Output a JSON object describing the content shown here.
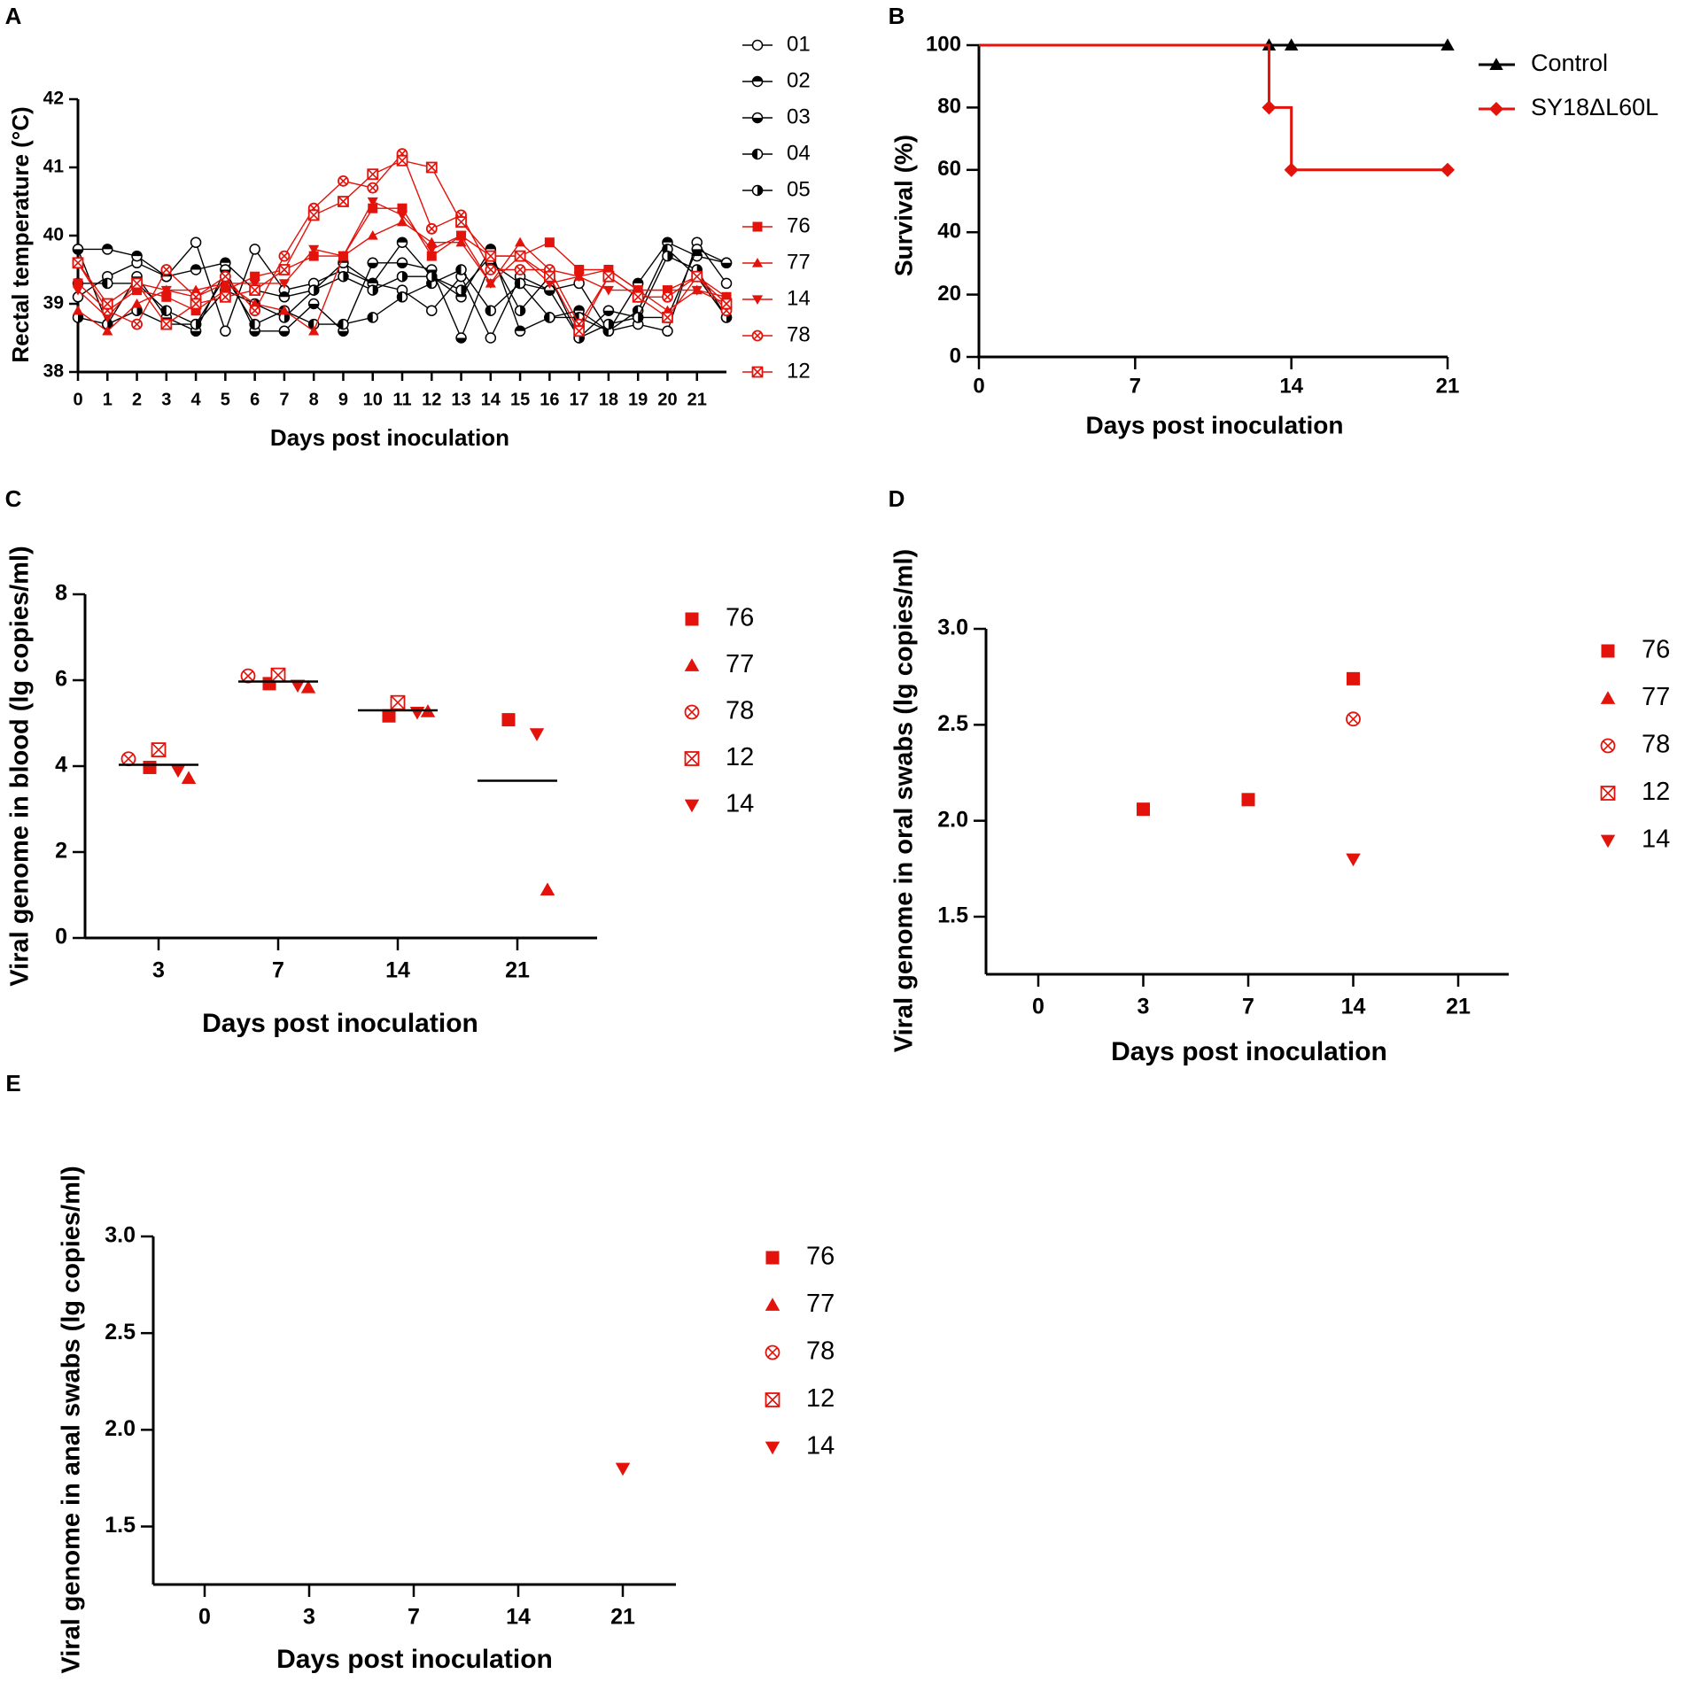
{
  "colors": {
    "red": "#e3120b",
    "black": "#000000",
    "white": "#ffffff"
  },
  "chart_data": [
    {
      "id": "A",
      "panel_label": "A",
      "type": "line",
      "title": "",
      "xlabel": "Days post inoculation",
      "ylabel": "Rectal temperature (°C)",
      "x": [
        0,
        1,
        2,
        3,
        4,
        5,
        6,
        7,
        8,
        9,
        10,
        11,
        12,
        13,
        14,
        15,
        16,
        17,
        18,
        19,
        20,
        21,
        22
      ],
      "xticks": [
        0,
        1,
        2,
        3,
        4,
        5,
        6,
        7,
        8,
        9,
        10,
        11,
        12,
        13,
        14,
        15,
        16,
        17,
        18,
        19,
        20,
        21
      ],
      "xlim": [
        0,
        22
      ],
      "ylim": [
        38,
        42
      ],
      "yticks": [
        38,
        39,
        40,
        41,
        42
      ],
      "series": [
        {
          "name": "01",
          "color": "#000000",
          "marker": "circle-open",
          "values": [
            39.1,
            39.4,
            39.6,
            39.4,
            39.9,
            38.6,
            39.8,
            39.2,
            39.3,
            39.5,
            39.3,
            39.2,
            38.9,
            39.4,
            38.5,
            39.4,
            39.2,
            39.3,
            38.6,
            38.7,
            38.6,
            39.9,
            39.3
          ]
        },
        {
          "name": "02",
          "color": "#000000",
          "marker": "circle-half-top",
          "values": [
            39.8,
            39.8,
            39.7,
            39.4,
            39.5,
            39.6,
            39.2,
            39.1,
            39.2,
            39.6,
            39.3,
            39.9,
            39.4,
            39.1,
            39.8,
            38.6,
            38.8,
            38.9,
            38.6,
            39.3,
            39.9,
            39.7,
            39.6
          ]
        },
        {
          "name": "03",
          "color": "#000000",
          "marker": "circle-half-bottom",
          "values": [
            39.8,
            38.7,
            39.4,
            38.8,
            38.6,
            39.5,
            38.6,
            38.6,
            39.0,
            38.6,
            39.6,
            39.6,
            39.5,
            38.5,
            39.6,
            39.3,
            39.2,
            38.5,
            38.9,
            38.8,
            38.8,
            39.8,
            39.6
          ]
        },
        {
          "name": "04",
          "color": "#000000",
          "marker": "circle-half-left",
          "values": [
            39.3,
            39.3,
            39.3,
            38.9,
            38.7,
            39.4,
            38.7,
            38.9,
            38.7,
            38.7,
            38.8,
            39.1,
            39.3,
            39.5,
            38.9,
            39.3,
            38.8,
            38.8,
            38.6,
            38.9,
            39.8,
            39.4,
            38.8
          ]
        },
        {
          "name": "05",
          "color": "#000000",
          "marker": "circle-half-right",
          "values": [
            38.8,
            38.7,
            38.9,
            38.7,
            38.7,
            39.2,
            39.0,
            38.8,
            39.2,
            39.4,
            39.2,
            39.4,
            39.4,
            39.2,
            39.7,
            38.9,
            39.4,
            38.5,
            38.7,
            38.8,
            39.7,
            39.5,
            38.8
          ]
        },
        {
          "name": "76",
          "color": "#e3120b",
          "marker": "square",
          "values": [
            39.3,
            38.9,
            39.2,
            39.1,
            38.9,
            39.2,
            39.4,
            39.5,
            39.7,
            39.7,
            40.4,
            40.4,
            39.7,
            40.0,
            39.7,
            39.7,
            39.9,
            39.5,
            39.5,
            39.2,
            39.2,
            39.4,
            39.1
          ]
        },
        {
          "name": "77",
          "color": "#e3120b",
          "marker": "triangle-up",
          "values": [
            38.9,
            38.6,
            39.0,
            39.2,
            39.2,
            39.3,
            39.0,
            38.9,
            38.6,
            39.7,
            40.0,
            40.2,
            39.9,
            39.9,
            39.3,
            39.9,
            39.5,
            39.4,
            39.5,
            39.2,
            38.9,
            39.2,
            39.1
          ]
        },
        {
          "name": "14",
          "color": "#e3120b",
          "marker": "triangle-down",
          "values": [
            39.2,
            38.8,
            39.3,
            39.2,
            39.1,
            39.3,
            39.3,
            39.3,
            39.8,
            39.7,
            40.5,
            40.3,
            39.8,
            40.0,
            39.3,
            39.7,
            39.3,
            39.4,
            39.2,
            39.2,
            39.2,
            39.2,
            39.0
          ]
        },
        {
          "name": "78",
          "color": "#e3120b",
          "marker": "circle-x",
          "values": [
            39.6,
            38.9,
            38.7,
            39.5,
            39.1,
            39.4,
            38.9,
            39.7,
            40.4,
            40.8,
            40.7,
            41.2,
            40.1,
            40.3,
            39.5,
            39.5,
            39.5,
            38.7,
            39.4,
            39.1,
            39.1,
            39.4,
            38.9
          ]
        },
        {
          "name": "12",
          "color": "#e3120b",
          "marker": "square-x",
          "values": [
            39.6,
            39.0,
            39.3,
            38.7,
            39.0,
            39.1,
            39.2,
            39.5,
            40.3,
            40.5,
            40.9,
            41.1,
            41.0,
            40.2,
            39.7,
            39.7,
            39.4,
            38.6,
            39.4,
            39.1,
            38.8,
            39.4,
            39.0
          ]
        }
      ]
    },
    {
      "id": "B",
      "panel_label": "B",
      "type": "line",
      "subtype": "survival-step",
      "title": "",
      "xlabel": "Days post inoculation",
      "ylabel": "Survival (%)",
      "xlim": [
        0,
        21
      ],
      "xticks": [
        0,
        7,
        14,
        21
      ],
      "ylim": [
        0,
        100
      ],
      "yticks": [
        0,
        20,
        40,
        60,
        80,
        100
      ],
      "series": [
        {
          "name": "Control",
          "color": "#000000",
          "marker": "triangle-up",
          "steps": [
            [
              0,
              100
            ],
            [
              21,
              100
            ]
          ],
          "points": [
            [
              13,
              100
            ],
            [
              14,
              100
            ],
            [
              21,
              100
            ]
          ]
        },
        {
          "name": "SY18ΔL60L",
          "color": "#e3120b",
          "marker": "diamond",
          "steps": [
            [
              0,
              100
            ],
            [
              13,
              100
            ],
            [
              13,
              80
            ],
            [
              14,
              80
            ],
            [
              14,
              60
            ],
            [
              21,
              60
            ]
          ],
          "points": [
            [
              13,
              80
            ],
            [
              14,
              60
            ],
            [
              21,
              60
            ]
          ]
        }
      ]
    },
    {
      "id": "C",
      "panel_label": "C",
      "type": "scatter",
      "title": "",
      "xlabel": "Days post inoculation",
      "ylabel": "Viral genome in blood (lg copies/ml)",
      "categories": [
        "3",
        "7",
        "14",
        "21"
      ],
      "ylim": [
        0,
        8
      ],
      "yticks": [
        0,
        2,
        4,
        6,
        8
      ],
      "series": [
        {
          "name": "76",
          "marker": "square",
          "values": [
            3.97,
            5.92,
            5.17,
            5.08
          ]
        },
        {
          "name": "77",
          "marker": "triangle-up",
          "values": [
            3.72,
            5.83,
            5.27,
            1.12
          ]
        },
        {
          "name": "78",
          "marker": "circle-x",
          "values": [
            4.17,
            6.1,
            null,
            null
          ]
        },
        {
          "name": "12",
          "marker": "square-x",
          "values": [
            4.38,
            6.12,
            5.48,
            null
          ]
        },
        {
          "name": "14",
          "marker": "triangle-down",
          "values": [
            3.9,
            5.88,
            5.25,
            4.75
          ]
        }
      ],
      "means": [
        4.03,
        5.97,
        5.3,
        3.66
      ]
    },
    {
      "id": "D",
      "panel_label": "D",
      "type": "scatter",
      "title": "",
      "xlabel": "Days post inoculation",
      "ylabel": "Viral genome in oral swabs (lg copies/ml)",
      "categories": [
        "0",
        "3",
        "7",
        "14",
        "21"
      ],
      "ylim": [
        1.2,
        3.0
      ],
      "yticks": [
        1.5,
        2.0,
        2.5,
        3.0
      ],
      "series": [
        {
          "name": "76",
          "marker": "square",
          "values": [
            null,
            2.06,
            2.11,
            2.74,
            null
          ]
        },
        {
          "name": "77",
          "marker": "triangle-up",
          "values": [
            null,
            null,
            null,
            null,
            null
          ]
        },
        {
          "name": "78",
          "marker": "circle-x",
          "values": [
            null,
            null,
            null,
            2.53,
            null
          ]
        },
        {
          "name": "12",
          "marker": "square-x",
          "values": [
            null,
            null,
            null,
            null,
            null
          ]
        },
        {
          "name": "14",
          "marker": "triangle-down",
          "values": [
            null,
            null,
            null,
            1.8,
            null
          ]
        }
      ]
    },
    {
      "id": "E",
      "panel_label": "E",
      "type": "scatter",
      "title": "",
      "xlabel": "Days post inoculation",
      "ylabel": "Viral genome in anal swabs (lg copies/ml)",
      "categories": [
        "0",
        "3",
        "7",
        "14",
        "21"
      ],
      "ylim": [
        1.2,
        3.0
      ],
      "yticks": [
        1.5,
        2.0,
        2.5,
        3.0
      ],
      "series": [
        {
          "name": "76",
          "marker": "square",
          "values": [
            null,
            null,
            null,
            null,
            null
          ]
        },
        {
          "name": "77",
          "marker": "triangle-up",
          "values": [
            null,
            null,
            null,
            null,
            null
          ]
        },
        {
          "name": "78",
          "marker": "circle-x",
          "values": [
            null,
            null,
            null,
            null,
            null
          ]
        },
        {
          "name": "12",
          "marker": "square-x",
          "values": [
            null,
            null,
            null,
            null,
            null
          ]
        },
        {
          "name": "14",
          "marker": "triangle-down",
          "values": [
            null,
            null,
            null,
            null,
            1.8
          ]
        }
      ]
    }
  ]
}
